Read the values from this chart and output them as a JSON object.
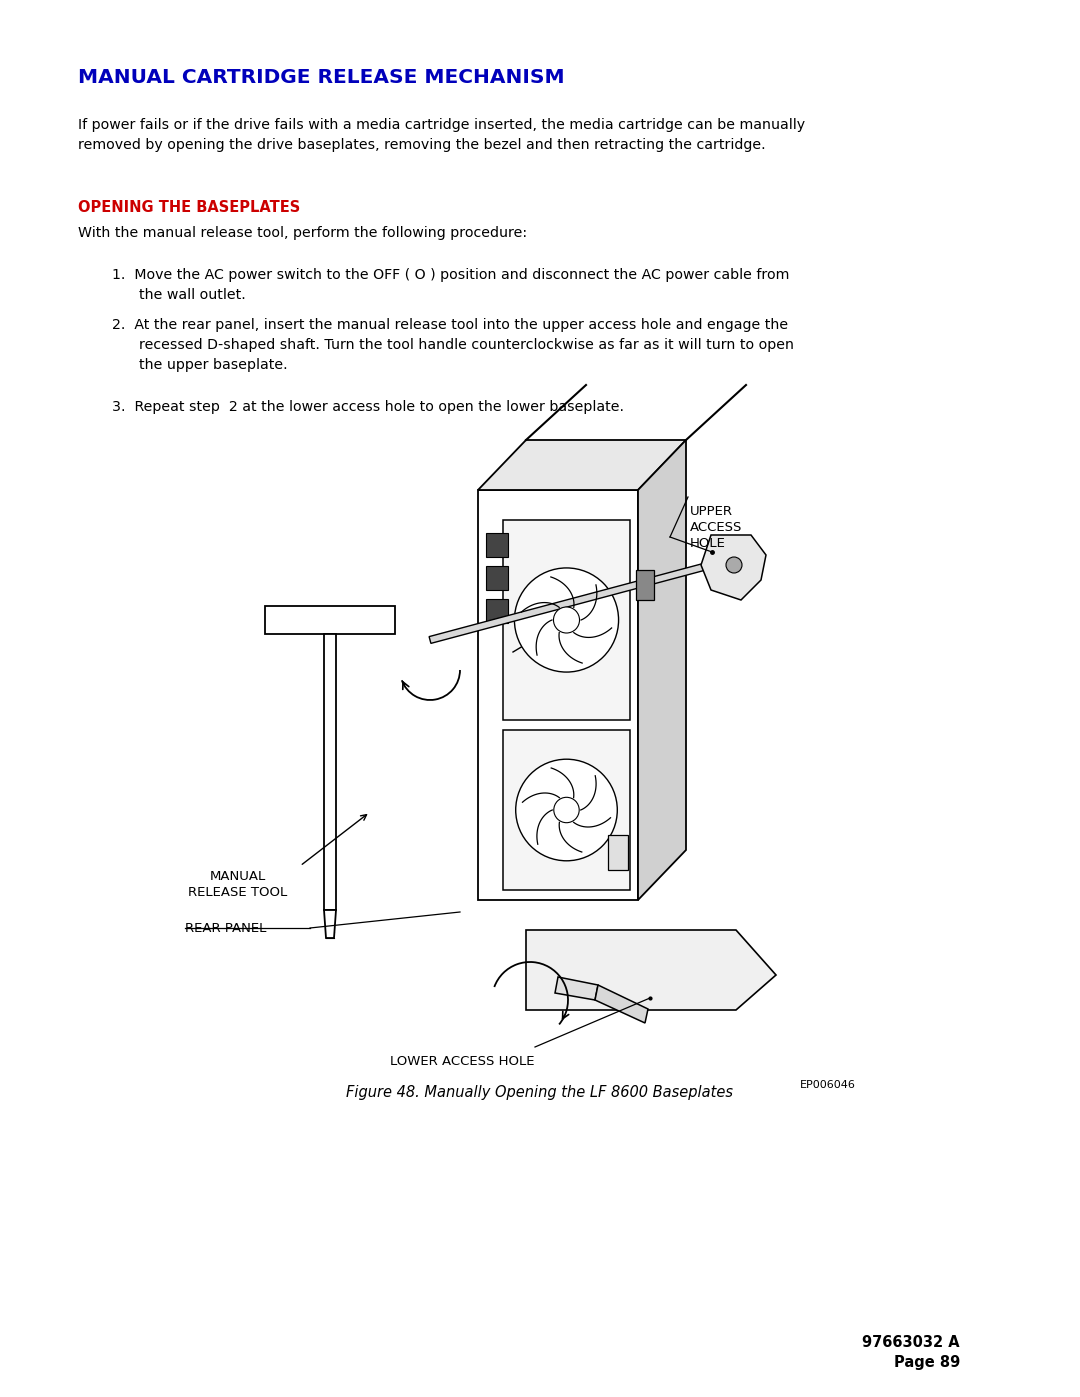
{
  "title": "MANUAL CARTRIDGE RELEASE MECHANISM",
  "title_color": "#0000BB",
  "subheading": "OPENING THE BASEPLATES",
  "subheading_color": "#CC0000",
  "body_text1": "If power fails or if the drive fails with a media cartridge inserted, the media cartridge can be manually\nremoved by opening the drive baseplates, removing the bezel and then retracting the cartridge.",
  "with_text": "With the manual release tool, perform the following procedure:",
  "step1": "1.  Move the AC power switch to the OFF ( O ) position and disconnect the AC power cable from\n      the wall outlet.",
  "step2": "2.  At the rear panel, insert the manual release tool into the upper access hole and engage the\n      recessed D-shaped shaft. Turn the tool handle counterclockwise as far as it will turn to open\n      the upper baseplate.",
  "step3": "3.  Repeat step  2 at the lower access hole to open the lower baseplate.",
  "fig_caption": "Figure 48. Manually Opening the LF 8600 Baseplates",
  "fig_ref": "EP006046",
  "footer_right": "97663032 A\nPage 89",
  "bg_color": "#ffffff",
  "text_color": "#000000",
  "label_upper_access": "UPPER\nACCESS\nHOLE",
  "label_manual_release": "MANUAL\nRELEASE TOOL",
  "label_rear_panel": "REAR PANEL",
  "label_lower_access": "LOWER ACCESS HOLE"
}
